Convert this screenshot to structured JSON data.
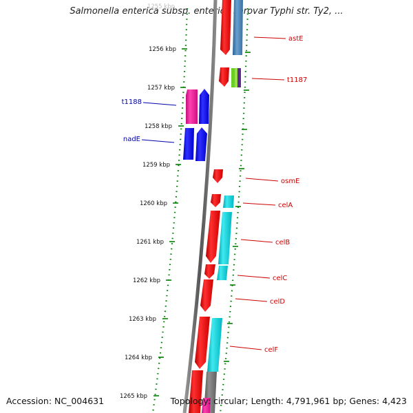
{
  "title": "Salmonella enterica subsp. enterica serovar Typhi str. Ty2, ...",
  "accession": "Accession: NC_004631",
  "summary": "Topology: circular; Length: 4,791,961 bp; Genes: 4,423",
  "colors": {
    "forward": "#ee0000",
    "reverse_cyan": "#00c8d0",
    "blue": "#0000ee",
    "magenta": "#e0148c",
    "steel": "#4682b4",
    "gray": "#808080",
    "green_ticks": "#008000",
    "label_red": "#cc0000",
    "label_blue": "#0000aa"
  },
  "kbp_labels": [
    "1256 kbp",
    "1257 kbp",
    "1258 kbp",
    "1259 kbp",
    "1260 kbp",
    "1261 kbp",
    "1262 kbp",
    "1263 kbp",
    "1264 kbp",
    "1265 kbp"
  ],
  "gene_labels_right": [
    "astE",
    "t1187",
    "osmE",
    "celA",
    "celB",
    "celC",
    "celD",
    "celF"
  ],
  "gene_labels_left": [
    "t1188",
    "nadE"
  ]
}
